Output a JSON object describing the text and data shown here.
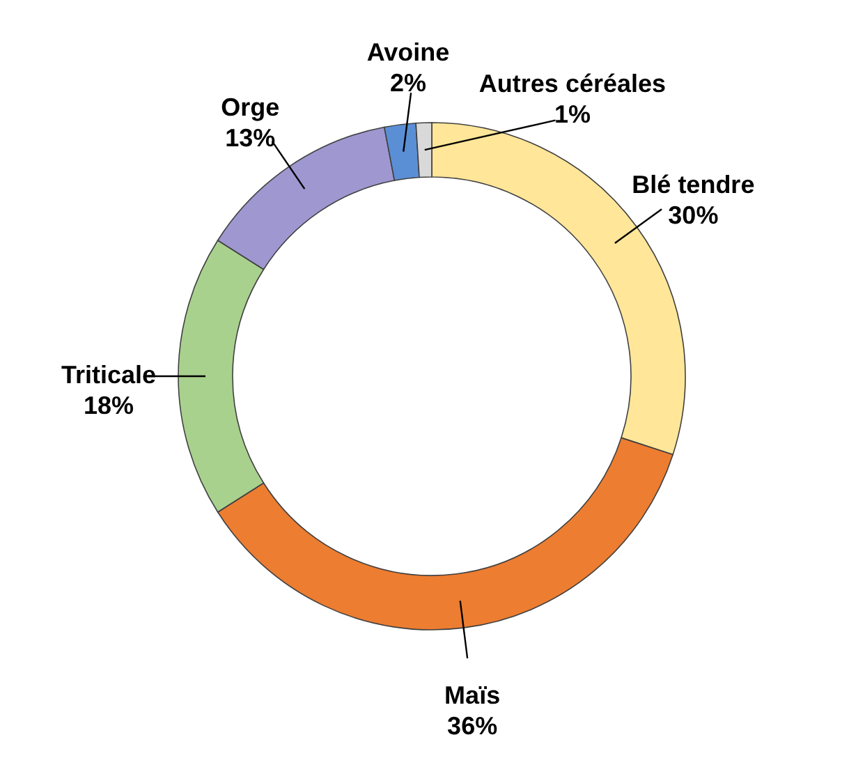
{
  "chart_data": {
    "type": "donut",
    "categories": [
      "Blé tendre",
      "Maïs",
      "Triticale",
      "Orge",
      "Avoine",
      "Autres céréales"
    ],
    "values": [
      30,
      36,
      18,
      13,
      2,
      1
    ],
    "value_labels": [
      "30%",
      "36%",
      "18%",
      "13%",
      "2%",
      "1%"
    ],
    "colors": [
      "#ffe699",
      "#ed7d31",
      "#a9d18e",
      "#9e97d0",
      "#5b8fd5",
      "#d9d9d9"
    ]
  }
}
